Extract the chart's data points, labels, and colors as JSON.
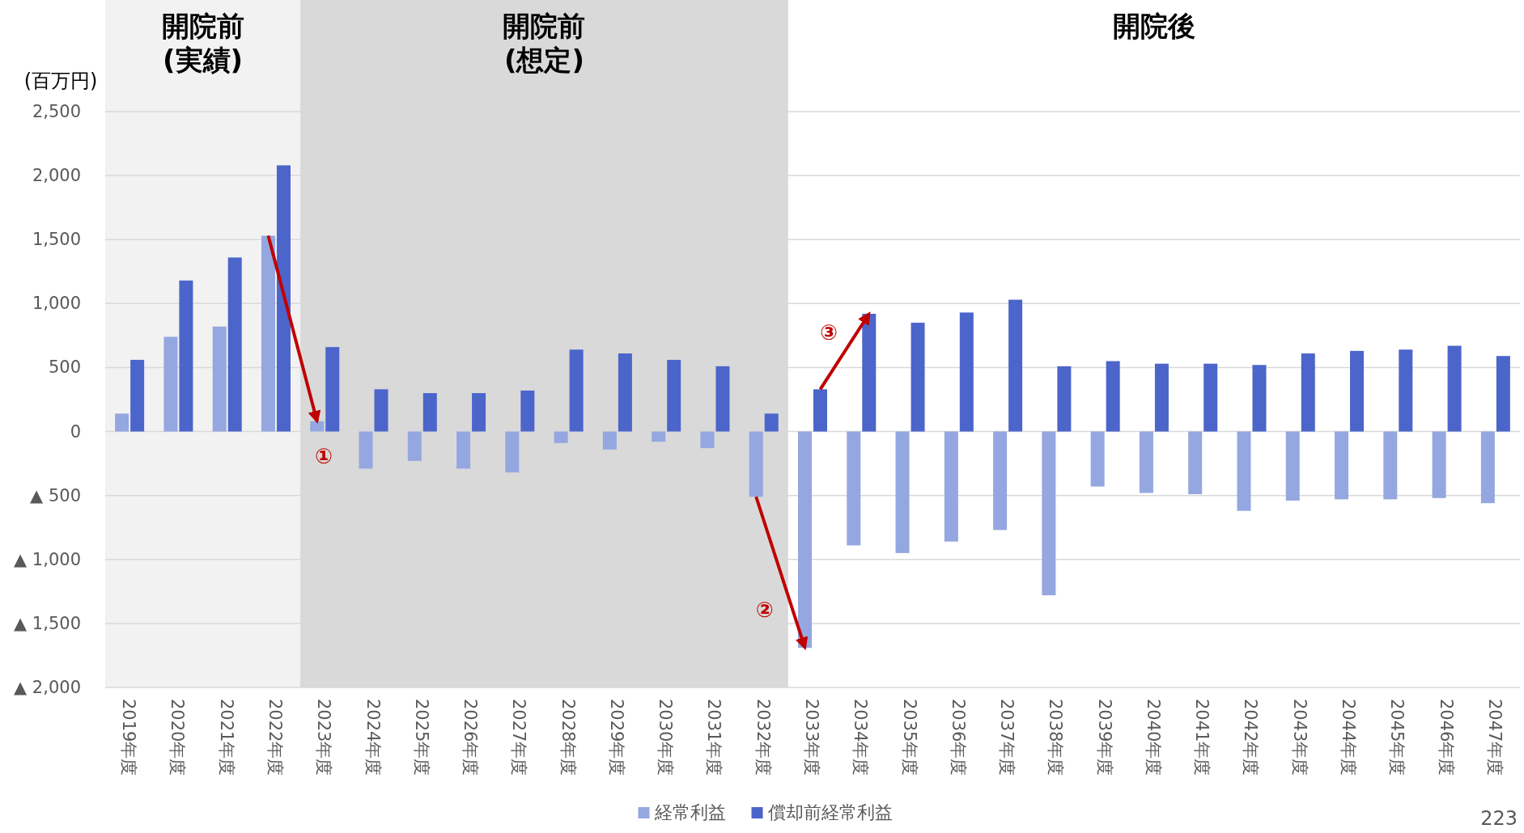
{
  "chart_data": {
    "type": "bar",
    "ylabel": "(百万円)",
    "ylim": [
      -2000,
      2500
    ],
    "yticks": [
      {
        "value": -2000,
        "label": "▲ 2,000"
      },
      {
        "value": -1500,
        "label": "▲ 1,500"
      },
      {
        "value": -1000,
        "label": "▲ 1,000"
      },
      {
        "value": -500,
        "label": "▲ 500"
      },
      0,
      {
        "value": 500,
        "label": "500"
      },
      {
        "value": 1000,
        "label": "1,000"
      },
      {
        "value": 1500,
        "label": "1,500"
      },
      {
        "value": 2000,
        "label": "2,000"
      },
      {
        "value": 2500,
        "label": "2,500"
      }
    ],
    "grid": "y",
    "legend": "bottom",
    "categories": [
      "2019年度",
      "2020年度",
      "2021年度",
      "2022年度",
      "2023年度",
      "2024年度",
      "2025年度",
      "2026年度",
      "2027年度",
      "2028年度",
      "2029年度",
      "2030年度",
      "2031年度",
      "2032年度",
      "2033年度",
      "2034年度",
      "2035年度",
      "2036年度",
      "2037年度",
      "2038年度",
      "2039年度",
      "2040年度",
      "2041年度",
      "2042年度",
      "2043年度",
      "2044年度",
      "2045年度",
      "2046年度",
      "2047年度"
    ],
    "series": [
      {
        "name": "経常利益",
        "color": "#95a7e0",
        "values": [
          140,
          740,
          820,
          1530,
          80,
          -290,
          -230,
          -290,
          -320,
          -90,
          -140,
          -80,
          -130,
          -510,
          -1690,
          -890,
          -950,
          -860,
          -770,
          -1280,
          -430,
          -480,
          -490,
          -620,
          -540,
          -530,
          -530,
          -520,
          -560
        ]
      },
      {
        "name": "償却前経常利益",
        "color": "#4c65ca",
        "values": [
          560,
          1180,
          1360,
          2080,
          660,
          330,
          300,
          300,
          320,
          640,
          610,
          560,
          510,
          140,
          330,
          920,
          850,
          930,
          1030,
          510,
          550,
          530,
          530,
          520,
          610,
          630,
          640,
          670,
          590
        ]
      }
    ],
    "bands": [
      {
        "axis": "x",
        "from": "2019年度",
        "to": "2022年度",
        "label": "開院前\n(実績)",
        "color": "#f2f2f2"
      },
      {
        "axis": "x",
        "from": "2023年度",
        "to": "2032年度",
        "label": "開院前\n(想定)",
        "color": "#d9d9d9"
      }
    ],
    "annotations": [
      {
        "text": "①",
        "x": "2023年度",
        "y": 80
      },
      {
        "text": "②",
        "x": "2033年度",
        "y": -1690
      },
      {
        "text": "③",
        "x": "2034年度",
        "y": 920
      },
      "開院後",
      "223"
    ]
  }
}
